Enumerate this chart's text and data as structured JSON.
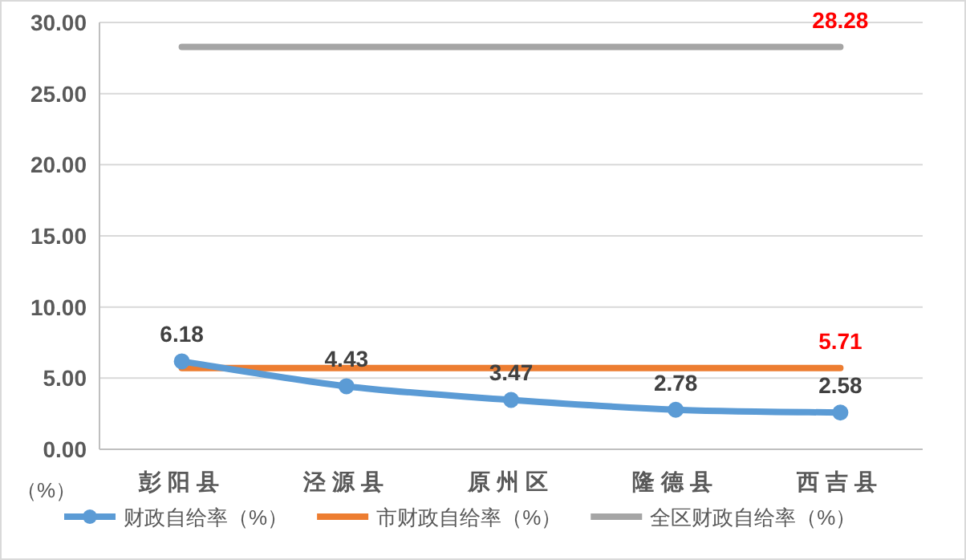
{
  "chart_data": {
    "type": "line",
    "categories": [
      "彭阳县",
      "泾源县",
      "原州区",
      "隆德县",
      "西吉县"
    ],
    "series": [
      {
        "name": "财政自给率（%）",
        "color": "#5b9bd5",
        "marker": "circle",
        "values": [
          6.18,
          4.43,
          3.47,
          2.78,
          2.58
        ],
        "value_labels": [
          "6.18",
          "4.43",
          "3.47",
          "2.78",
          "2.58"
        ]
      },
      {
        "name": "市财政自给率（%）",
        "color": "#ed7d31",
        "marker": "none",
        "values": [
          5.71,
          5.71,
          5.71,
          5.71,
          5.71
        ],
        "value_labels": [
          null,
          null,
          null,
          null,
          "5.71"
        ]
      },
      {
        "name": "全区财政自给率（%）",
        "color": "#a5a5a5",
        "marker": "none",
        "values": [
          28.28,
          28.28,
          28.28,
          28.28,
          28.28
        ],
        "value_labels": [
          null,
          null,
          null,
          null,
          "28.28"
        ]
      }
    ],
    "ylim": [
      0,
      30
    ],
    "yticks": [
      {
        "value": 0,
        "label": "0.00"
      },
      {
        "value": 5,
        "label": "5.00"
      },
      {
        "value": 10,
        "label": "10.00"
      },
      {
        "value": 15,
        "label": "15.00"
      },
      {
        "value": 20,
        "label": "20.00"
      },
      {
        "value": 25,
        "label": "25.00"
      },
      {
        "value": 30,
        "label": "30.00"
      }
    ],
    "grid": "y",
    "legend": "bottom",
    "annotations": [
      "（%）"
    ]
  }
}
